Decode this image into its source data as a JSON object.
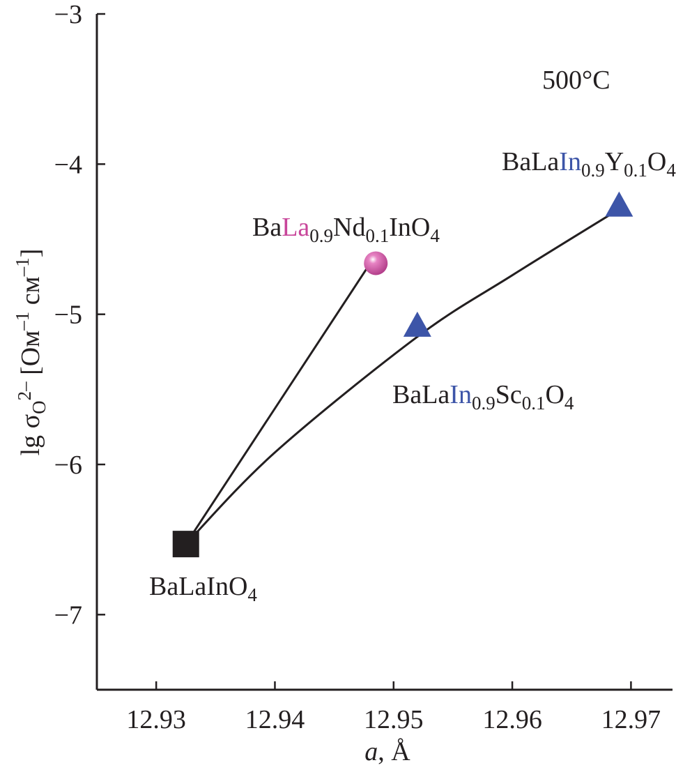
{
  "chart_data": {
    "type": "scatter",
    "title": "",
    "xlabel": {
      "italic": "a",
      "rest": ", Å"
    },
    "ylabel": {
      "lead": "lg σ",
      "sub": "O",
      "sup": "2–",
      "bracket": " [Ом",
      "sup2": "–1",
      "mid": " см",
      "sup3": "–1",
      "close": "]"
    },
    "xlim": [
      12.925,
      12.9735
    ],
    "ylim": [
      -7.5,
      -3
    ],
    "x_ticks": [
      12.93,
      12.94,
      12.95,
      12.96,
      12.97
    ],
    "x_tick_labels": [
      "12.93",
      "12.94",
      "12.95",
      "12.96",
      "12.97"
    ],
    "y_ticks": [
      -3,
      -4,
      -5,
      -6,
      -7
    ],
    "y_tick_labels": [
      "−3",
      "−4",
      "−5",
      "−6",
      "−7"
    ],
    "annotation": "500°C",
    "points": [
      {
        "id": "BaLaInO4",
        "x": 12.9325,
        "y": -6.53,
        "marker": "square",
        "color": "#231f20",
        "label": [
          {
            "t": "BaLaInO",
            "c": "#231f20"
          },
          {
            "t": "4",
            "c": "#231f20",
            "sub": true
          }
        ]
      },
      {
        "id": "Nd",
        "x": 12.9485,
        "y": -4.66,
        "marker": "sphere",
        "color": "#c8459a",
        "label": [
          {
            "t": "Ba",
            "c": "#231f20"
          },
          {
            "t": "La",
            "c": "#c8459a"
          },
          {
            "t": "0.9",
            "c": "#231f20",
            "sub": true
          },
          {
            "t": "Nd",
            "c": "#231f20"
          },
          {
            "t": "0.1",
            "c": "#231f20",
            "sub": true
          },
          {
            "t": "InO",
            "c": "#231f20"
          },
          {
            "t": "4",
            "c": "#231f20",
            "sub": true
          }
        ]
      },
      {
        "id": "Sc",
        "x": 12.952,
        "y": -5.08,
        "marker": "triangle",
        "color": "#3d55a8",
        "label": [
          {
            "t": "BaLa",
            "c": "#231f20"
          },
          {
            "t": "In",
            "c": "#3d55a8"
          },
          {
            "t": "0.9",
            "c": "#231f20",
            "sub": true
          },
          {
            "t": "Sc",
            "c": "#231f20"
          },
          {
            "t": "0.1",
            "c": "#231f20",
            "sub": true
          },
          {
            "t": "O",
            "c": "#231f20"
          },
          {
            "t": "4",
            "c": "#231f20",
            "sub": true
          }
        ]
      },
      {
        "id": "Y",
        "x": 12.969,
        "y": -4.28,
        "marker": "triangle",
        "color": "#3d55a8",
        "label": [
          {
            "t": "BaLa",
            "c": "#231f20"
          },
          {
            "t": "In",
            "c": "#3d55a8"
          },
          {
            "t": "0.9",
            "c": "#231f20",
            "sub": true
          },
          {
            "t": "Y",
            "c": "#231f20"
          },
          {
            "t": "0.1",
            "c": "#231f20",
            "sub": true
          },
          {
            "t": "O",
            "c": "#231f20"
          },
          {
            "t": "4",
            "c": "#231f20",
            "sub": true
          }
        ]
      }
    ],
    "lines": [
      {
        "id": "line-nd",
        "points": [
          [
            12.9325,
            -6.53
          ],
          [
            12.9477,
            -4.7
          ]
        ]
      },
      {
        "id": "line-sc-y",
        "points": [
          [
            12.9325,
            -6.53
          ],
          [
            12.94,
            -5.92
          ],
          [
            12.952,
            -5.15
          ],
          [
            12.96,
            -4.74
          ],
          [
            12.969,
            -4.3
          ]
        ]
      }
    ]
  }
}
